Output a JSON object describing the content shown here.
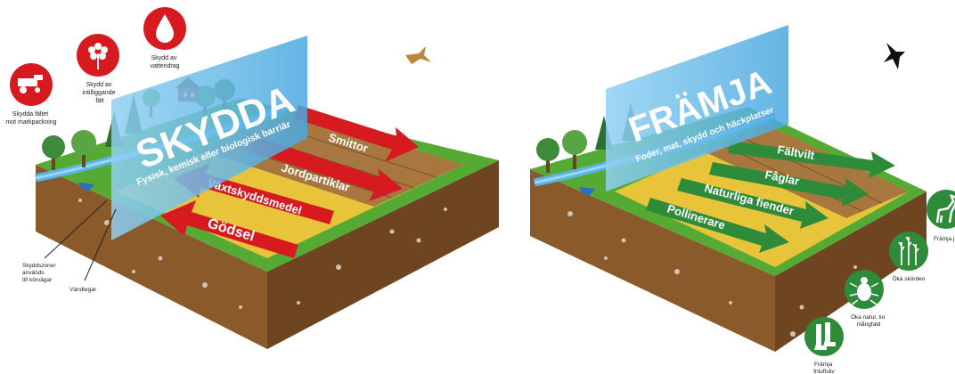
{
  "left_panel": {
    "title": "SKYDDA",
    "subtitle": "Fysisk, kemisk eller biologisk barriär",
    "arrows": [
      "Smittor",
      "Jordpartiklar",
      "Växtskyddsmedel",
      "Gödsel"
    ],
    "icons": [
      {
        "icon": "harvester-icon",
        "label_lines": [
          "Skydda fältet",
          "mot markpackning"
        ]
      },
      {
        "icon": "flower-icon",
        "label_lines": [
          "Skydd av",
          "intilliggande",
          "fält"
        ]
      },
      {
        "icon": "water-drop-icon",
        "label_lines": [
          "Skydd av",
          "vattendrag"
        ]
      }
    ],
    "annotations": [
      {
        "label_lines": [
          "Skyddszoner",
          "används",
          "till körvägar"
        ]
      },
      {
        "label_lines": [
          "Vändtegar"
        ]
      }
    ]
  },
  "right_panel": {
    "title": "FRÄMJA",
    "subtitle": "Foder, mat, skydd och häckplatser",
    "arrows": [
      "Fältvilt",
      "Fåglar",
      "Naturliga fiender",
      "Pollinerare"
    ],
    "icons": [
      {
        "icon": "deer-icon",
        "label_lines": [
          "Främja j"
        ]
      },
      {
        "icon": "plants-icon",
        "label_lines": [
          "Öka skörden"
        ]
      },
      {
        "icon": "beetle-icon",
        "label_lines": [
          "Öka natur, lio",
          "mångfald"
        ]
      },
      {
        "icon": "boots-icon",
        "label_lines": [
          "Främja",
          "friluftsliv"
        ]
      }
    ]
  },
  "colors": {
    "red": "#d71920",
    "green": "#2e8b3a",
    "soil": "#8b5a2b",
    "grass": "#55aa33",
    "yellow": "#e8c43a",
    "water": "#5ab4e6",
    "panel": "#6cc0ea"
  }
}
